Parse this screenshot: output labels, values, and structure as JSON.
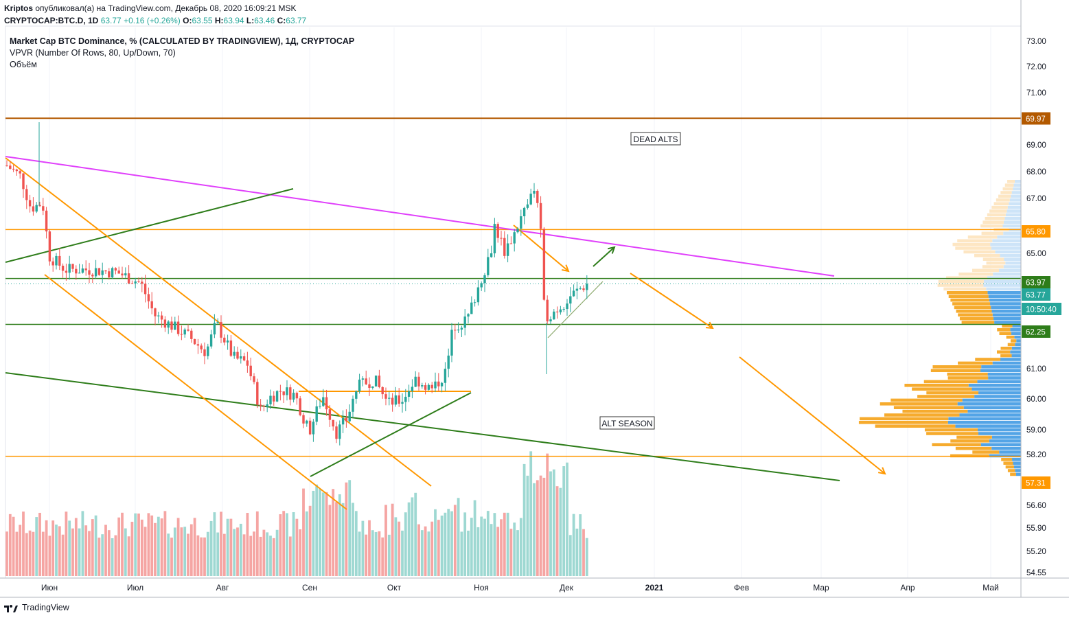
{
  "header": {
    "author": "Kriptos",
    "published_text": "опубликовал(а) на TradingView.com, Декабрь 08, 2020 16:09:21 MSK",
    "symbol": "CRYPTOCAP:BTC.D, 1D",
    "last": "63.77",
    "change": "+0.16 (+0.26%)",
    "o_label": "O:",
    "o": "63.55",
    "h_label": "H:",
    "h": "63.94",
    "l_label": "L:",
    "l": "63.46",
    "c_label": "C:",
    "c": "63.77"
  },
  "studies": [
    "Market Cap BTC Dominance, % (CALCULATED BY TRADINGVIEW), 1Д, CRYPTOCAP",
    "VPVR (Number Of Rows, 80, Up/Down, 70)",
    "Объём"
  ],
  "annotations": {
    "dead_alts": "DEAD ALTS",
    "alt_season": "ALT SEASON"
  },
  "footer": {
    "brand": "TradingView"
  },
  "colors": {
    "up": "#26a69a",
    "down": "#ef5350",
    "orange": "#ff9800",
    "green_line": "#2e7d1a",
    "magenta": "#e040fb",
    "brown": "#b35900",
    "vpvr_up": "#4a9fe5",
    "vpvr_down": "#f5a623"
  },
  "chart_data": {
    "type": "candlestick",
    "y_ticks": [
      "73.00",
      "72.00",
      "71.00",
      "69.00",
      "68.00",
      "67.00",
      "65.00",
      "61.00",
      "60.00",
      "59.00",
      "58.20",
      "56.60",
      "55.90",
      "55.20",
      "54.55"
    ],
    "x_ticks": [
      "Июн",
      "Июл",
      "Авг",
      "Сен",
      "Окт",
      "Ноя",
      "Дек",
      "2021",
      "Фев",
      "Мар",
      "Апр",
      "Май"
    ],
    "price_labels": [
      {
        "value": "69.97",
        "color": "#b35900"
      },
      {
        "value": "65.80",
        "color": "#ff9800"
      },
      {
        "value": "63.97",
        "color": "#2e7d1a"
      },
      {
        "value": "63.77",
        "color": "#26a69a"
      },
      {
        "value": "10:50:40",
        "color": "#26a69a"
      },
      {
        "value": "62.25",
        "color": "#2e7d1a"
      },
      {
        "value": "57.31",
        "color": "#ff9800"
      }
    ],
    "horizontal_levels": [
      69.97,
      65.8,
      63.97,
      62.25,
      57.31
    ],
    "ylim": [
      54.4,
      73.4
    ],
    "last_price": 63.77
  }
}
